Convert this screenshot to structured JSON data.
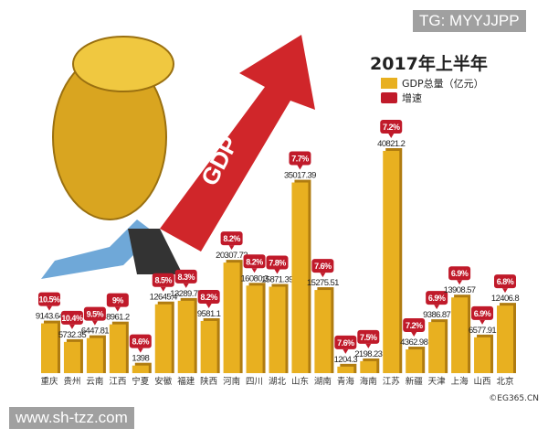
{
  "watermark_top": "TG: MYYJJPP",
  "watermark_bottom": "www.sh-tzz.com",
  "credit": "©EG365.CN",
  "illustration_text": "GDP",
  "chart_data": {
    "type": "bar",
    "title": "2017年上半年",
    "legend": [
      {
        "label": "GDP总量（亿元）",
        "color": "#e8b020"
      },
      {
        "label": "增速",
        "color": "#c01a2a"
      }
    ],
    "legend_position": "top-right",
    "grid": false,
    "categories": [
      "重庆",
      "贵州",
      "云南",
      "江西",
      "宁夏",
      "安徽",
      "福建",
      "陕西",
      "河南",
      "四川",
      "湖北",
      "山东",
      "湖南",
      "青海",
      "海南",
      "江苏",
      "新疆",
      "天津",
      "上海",
      "山西",
      "北京"
    ],
    "series": [
      {
        "name": "GDP总量（亿元）",
        "values": [
          9143.64,
          5732.35,
          6447.81,
          8961.2,
          1398,
          12645.4,
          13289.77,
          9581.1,
          20307.72,
          16080.3,
          15871.39,
          35017.39,
          15275.51,
          1204.3,
          2198.23,
          40821.2,
          4362.98,
          9386.87,
          13908.57,
          6577.91,
          12406.8
        ]
      },
      {
        "name": "增速",
        "values": [
          "10.5%",
          "10.4%",
          "9.5%",
          "9%",
          "8.6%",
          "8.5%",
          "8.3%",
          "8.2%",
          "8.2%",
          "8.2%",
          "7.8%",
          "7.7%",
          "7.6%",
          "7.6%",
          "7.5%",
          "7.2%",
          "7.2%",
          "6.9%",
          "6.9%",
          "6.9%",
          "6.8%"
        ]
      }
    ],
    "value_labels": [
      "9143.64",
      "5732.35",
      "6447.81",
      "8961.2",
      "1398",
      "12645.4",
      "13289.77",
      "9581.1",
      "20307.72",
      "16080.3",
      "15871.39",
      "35017.39",
      "15275.51",
      "1204.3",
      "2198.23",
      "40821.2",
      "4362.98",
      "9386.87",
      "13908.57",
      "6577.91",
      "12406.8"
    ],
    "colors": {
      "bar": "#e8b020",
      "bar_side": "#b07c10",
      "badge": "#c01a2a"
    }
  }
}
